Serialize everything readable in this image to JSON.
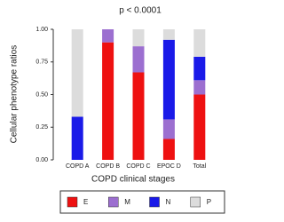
{
  "chart_data": {
    "type": "stacked_bar",
    "title": "p < 0.0001",
    "x_label": "COPD clinical stages",
    "y_label": "Cellular phenotype ratios",
    "categories": [
      "COPD A",
      "COPD B",
      "COPD C",
      "EPOC D",
      "Total"
    ],
    "series": [
      {
        "name": "E",
        "color": "#ee1111",
        "values": [
          0,
          0.9,
          0.67,
          0.16,
          0.5
        ]
      },
      {
        "name": "M",
        "color": "#9c6fd0",
        "values": [
          0,
          0.1,
          0.2,
          0.15,
          0.11
        ]
      },
      {
        "name": "N",
        "color": "#1a1ae8",
        "values": [
          0.33,
          0,
          0,
          0.61,
          0.18
        ]
      },
      {
        "name": "P",
        "color": "#dcdcdc",
        "values": [
          0.67,
          0,
          0.13,
          0.08,
          0.21
        ]
      }
    ],
    "ylim": [
      0,
      1
    ],
    "yticks": [
      {
        "value": 0,
        "label": "0.00"
      },
      0.25,
      {
        "value": 0.5,
        "label": "0.50"
      },
      0.75,
      {
        "value": 1,
        "label": "1.00"
      }
    ],
    "legend": "bottom"
  }
}
